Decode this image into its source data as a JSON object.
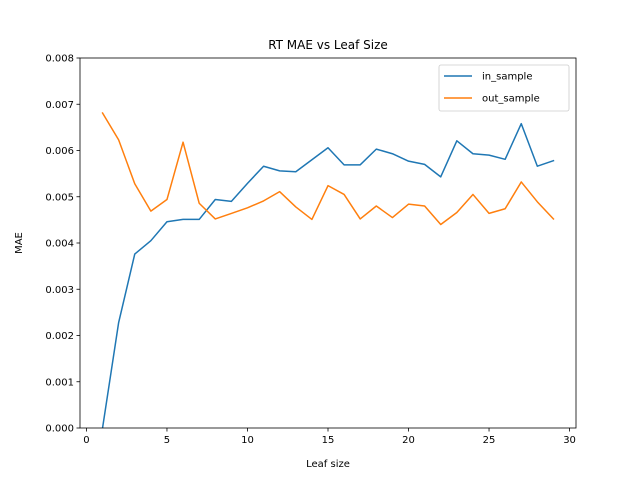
{
  "chart_data": {
    "type": "line",
    "title": "RT MAE vs Leaf Size",
    "xlabel": "Leaf size",
    "ylabel": "MAE",
    "xlim": [
      -0.4,
      30.4
    ],
    "ylim": [
      0.0,
      0.008
    ],
    "xticks": [
      0,
      5,
      10,
      15,
      20,
      25,
      30
    ],
    "xtick_labels": [
      "0",
      "5",
      "10",
      "15",
      "20",
      "25",
      "30"
    ],
    "yticks": [
      0.0,
      0.001,
      0.002,
      0.003,
      0.004,
      0.005,
      0.006,
      0.007,
      0.008
    ],
    "ytick_labels": [
      "0.000",
      "0.001",
      "0.002",
      "0.003",
      "0.004",
      "0.005",
      "0.006",
      "0.007",
      "0.008"
    ],
    "grid": false,
    "legend_position": "top-right",
    "x": [
      1,
      2,
      3,
      4,
      5,
      6,
      7,
      8,
      9,
      10,
      11,
      12,
      13,
      14,
      15,
      16,
      17,
      18,
      19,
      20,
      21,
      22,
      23,
      24,
      25,
      26,
      27,
      28,
      29
    ],
    "series": [
      {
        "name": "in_sample",
        "color": "#1f77b4",
        "values": [
          0.0,
          0.00228,
          0.00376,
          0.00405,
          0.00446,
          0.00451,
          0.00451,
          0.00494,
          0.0049,
          0.00529,
          0.00566,
          0.00556,
          0.00554,
          0.0058,
          0.00606,
          0.00569,
          0.00569,
          0.00603,
          0.00593,
          0.00577,
          0.0057,
          0.00543,
          0.00621,
          0.00593,
          0.0059,
          0.00581,
          0.00658,
          0.00566,
          0.00578
        ]
      },
      {
        "name": "out_sample",
        "color": "#ff7f0e",
        "values": [
          0.00681,
          0.00623,
          0.00528,
          0.00469,
          0.00494,
          0.00618,
          0.00486,
          0.00452,
          0.00464,
          0.00476,
          0.00491,
          0.00511,
          0.00478,
          0.00451,
          0.00524,
          0.00505,
          0.00452,
          0.0048,
          0.00455,
          0.00484,
          0.0048,
          0.0044,
          0.00466,
          0.00505,
          0.00464,
          0.00474,
          0.00532,
          0.00489,
          0.00452
        ]
      }
    ]
  }
}
